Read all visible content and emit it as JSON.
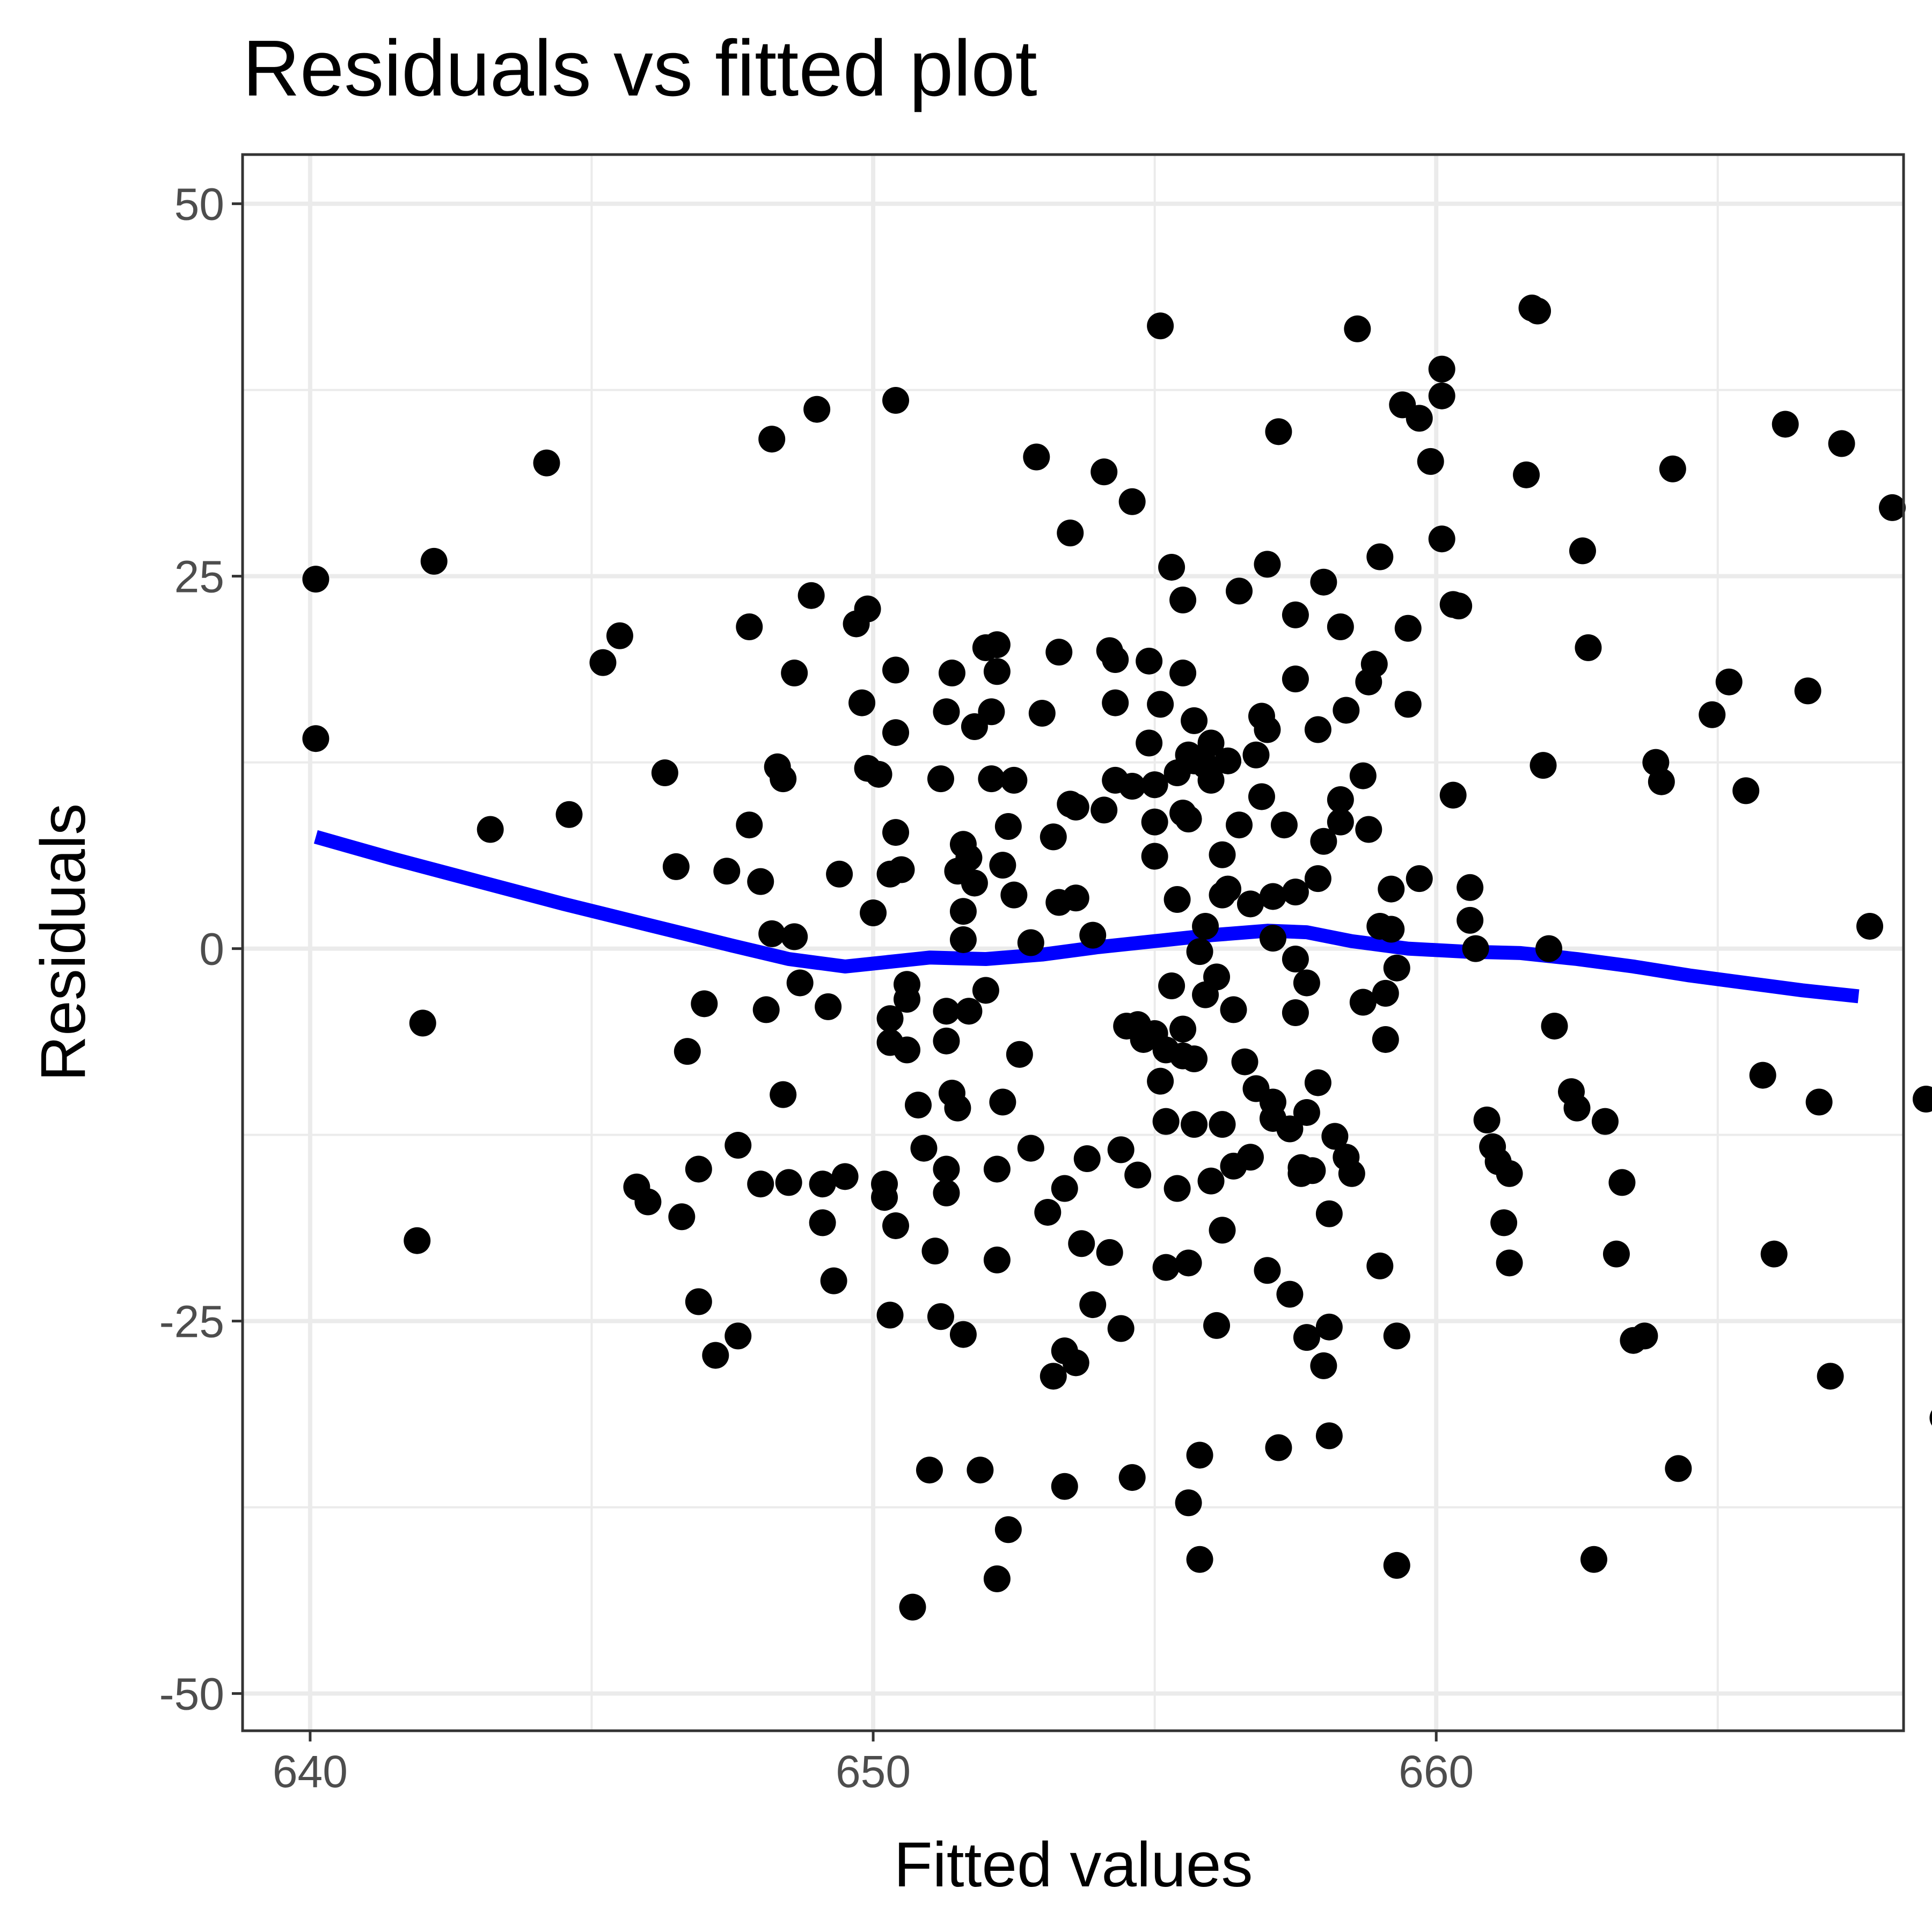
{
  "chart_data": {
    "type": "scatter",
    "title": "Residuals vs fitted plot",
    "xlabel": "Fitted values",
    "ylabel": "Residuals",
    "xlim": [
      638.8,
      668.3
    ],
    "ylim": [
      -52.5,
      53.3
    ],
    "x_ticks": [
      640,
      650,
      660
    ],
    "x_tick_labels": [
      "640",
      "650",
      "660"
    ],
    "y_ticks": [
      50,
      25,
      0,
      -25,
      -50
    ],
    "y_tick_labels": [
      "50",
      "25",
      "0",
      "-25",
      "-50"
    ],
    "grid": true,
    "point_color": "#000000",
    "smooth_color": "#0000ff",
    "points": [
      [
        640.1,
        24.8
      ],
      [
        640.1,
        14.1
      ],
      [
        642.2,
        26.0
      ],
      [
        641.9,
        -19.6
      ],
      [
        642.0,
        -5.0
      ],
      [
        643.2,
        8.0
      ],
      [
        644.2,
        32.6
      ],
      [
        644.6,
        9.0
      ],
      [
        645.2,
        19.2
      ],
      [
        645.5,
        21.0
      ],
      [
        645.8,
        -16.0
      ],
      [
        646.0,
        -17.0
      ],
      [
        646.3,
        11.8
      ],
      [
        646.5,
        5.5
      ],
      [
        646.6,
        -18.0
      ],
      [
        646.7,
        -6.9
      ],
      [
        646.9,
        -14.8
      ],
      [
        646.9,
        -23.7
      ],
      [
        647.0,
        -3.7
      ],
      [
        647.2,
        -27.3
      ],
      [
        647.4,
        5.2
      ],
      [
        647.6,
        -13.2
      ],
      [
        647.6,
        -26.0
      ],
      [
        647.8,
        21.6
      ],
      [
        647.8,
        8.3
      ],
      [
        648.0,
        4.5
      ],
      [
        648.0,
        -15.8
      ],
      [
        648.1,
        -4.1
      ],
      [
        648.2,
        1.0
      ],
      [
        648.2,
        34.2
      ],
      [
        648.3,
        12.2
      ],
      [
        648.4,
        11.4
      ],
      [
        648.4,
        -9.8
      ],
      [
        648.5,
        -15.7
      ],
      [
        648.6,
        0.8
      ],
      [
        648.6,
        18.5
      ],
      [
        648.7,
        -2.3
      ],
      [
        648.9,
        23.7
      ],
      [
        649.0,
        36.2
      ],
      [
        649.1,
        -15.8
      ],
      [
        649.1,
        -18.4
      ],
      [
        649.2,
        -3.9
      ],
      [
        649.3,
        -22.3
      ],
      [
        649.4,
        5.0
      ],
      [
        649.5,
        -15.3
      ],
      [
        649.7,
        21.8
      ],
      [
        649.8,
        16.5
      ],
      [
        649.9,
        12.1
      ],
      [
        649.9,
        22.8
      ],
      [
        650.0,
        2.4
      ],
      [
        650.1,
        11.7
      ],
      [
        650.2,
        -15.8
      ],
      [
        650.2,
        -16.7
      ],
      [
        650.3,
        5.0
      ],
      [
        650.3,
        -24.6
      ],
      [
        650.3,
        -4.7
      ],
      [
        650.3,
        -6.3
      ],
      [
        650.4,
        18.7
      ],
      [
        650.4,
        14.5
      ],
      [
        650.4,
        7.8
      ],
      [
        650.4,
        36.8
      ],
      [
        650.4,
        -18.6
      ],
      [
        650.5,
        5.3
      ],
      [
        650.6,
        -2.4
      ],
      [
        650.6,
        -3.4
      ],
      [
        650.6,
        -6.8
      ],
      [
        650.7,
        -44.2
      ],
      [
        650.8,
        -10.5
      ],
      [
        650.9,
        -13.4
      ],
      [
        651.0,
        -35.0
      ],
      [
        651.1,
        -20.3
      ],
      [
        651.2,
        -24.7
      ],
      [
        651.2,
        11.4
      ],
      [
        651.3,
        -14.8
      ],
      [
        651.3,
        -16.4
      ],
      [
        651.3,
        -4.2
      ],
      [
        651.3,
        -6.2
      ],
      [
        651.3,
        15.9
      ],
      [
        651.4,
        18.5
      ],
      [
        651.4,
        -9.7
      ],
      [
        651.5,
        -10.7
      ],
      [
        651.5,
        5.2
      ],
      [
        651.6,
        7.0
      ],
      [
        651.6,
        0.6
      ],
      [
        651.6,
        -25.9
      ],
      [
        651.6,
        2.5
      ],
      [
        651.7,
        6.1
      ],
      [
        651.7,
        -4.2
      ],
      [
        651.8,
        4.4
      ],
      [
        651.8,
        14.9
      ],
      [
        651.9,
        -35.0
      ],
      [
        652.0,
        20.2
      ],
      [
        652.0,
        -2.8
      ],
      [
        652.1,
        11.4
      ],
      [
        652.1,
        15.9
      ],
      [
        652.2,
        18.6
      ],
      [
        652.2,
        20.4
      ],
      [
        652.2,
        -42.3
      ],
      [
        652.2,
        -20.9
      ],
      [
        652.2,
        -14.8
      ],
      [
        652.3,
        -10.3
      ],
      [
        652.3,
        5.6
      ],
      [
        652.4,
        8.2
      ],
      [
        652.4,
        -39.0
      ],
      [
        652.5,
        11.3
      ],
      [
        652.5,
        3.6
      ],
      [
        652.6,
        -7.1
      ],
      [
        652.8,
        -13.4
      ],
      [
        652.8,
        0.4
      ],
      [
        652.9,
        33.0
      ],
      [
        653.0,
        15.8
      ],
      [
        653.1,
        -17.7
      ],
      [
        653.2,
        -28.7
      ],
      [
        653.2,
        7.5
      ],
      [
        653.3,
        19.9
      ],
      [
        653.3,
        3.1
      ],
      [
        653.4,
        -36.1
      ],
      [
        653.4,
        -16.1
      ],
      [
        653.4,
        -27.0
      ],
      [
        653.5,
        9.7
      ],
      [
        653.5,
        27.9
      ],
      [
        653.6,
        -27.8
      ],
      [
        653.6,
        9.5
      ],
      [
        653.6,
        3.4
      ],
      [
        653.7,
        -19.8
      ],
      [
        653.8,
        -14.1
      ],
      [
        653.9,
        -23.9
      ],
      [
        653.9,
        0.9
      ],
      [
        654.1,
        32.0
      ],
      [
        654.1,
        9.3
      ],
      [
        654.2,
        20.0
      ],
      [
        654.2,
        -20.4
      ],
      [
        654.3,
        19.4
      ],
      [
        654.3,
        16.5
      ],
      [
        654.3,
        11.3
      ],
      [
        654.4,
        -25.5
      ],
      [
        654.4,
        -13.5
      ],
      [
        654.5,
        -5.2
      ],
      [
        654.6,
        30.0
      ],
      [
        654.6,
        -35.5
      ],
      [
        654.6,
        10.9
      ],
      [
        654.7,
        -15.2
      ],
      [
        654.7,
        -5.1
      ],
      [
        654.8,
        -6.1
      ],
      [
        654.9,
        19.3
      ],
      [
        654.9,
        13.8
      ],
      [
        655.0,
        11.0
      ],
      [
        655.0,
        8.5
      ],
      [
        655.0,
        6.2
      ],
      [
        655.0,
        -5.7
      ],
      [
        655.1,
        41.8
      ],
      [
        655.1,
        16.4
      ],
      [
        655.1,
        -8.9
      ],
      [
        655.2,
        -6.8
      ],
      [
        655.2,
        -11.6
      ],
      [
        655.2,
        -21.4
      ],
      [
        655.3,
        25.6
      ],
      [
        655.3,
        -2.5
      ],
      [
        655.4,
        3.3
      ],
      [
        655.4,
        11.8
      ],
      [
        655.4,
        -16.1
      ],
      [
        655.5,
        23.4
      ],
      [
        655.5,
        -5.4
      ],
      [
        655.5,
        -7.2
      ],
      [
        655.5,
        9.1
      ],
      [
        655.5,
        18.5
      ],
      [
        655.6,
        -37.2
      ],
      [
        655.6,
        -21.1
      ],
      [
        655.6,
        8.7
      ],
      [
        655.6,
        13.0
      ],
      [
        655.7,
        -11.8
      ],
      [
        655.7,
        12.6
      ],
      [
        655.7,
        -7.4
      ],
      [
        655.7,
        15.3
      ],
      [
        655.8,
        -41.0
      ],
      [
        655.8,
        -34.0
      ],
      [
        655.8,
        -0.2
      ],
      [
        655.9,
        1.5
      ],
      [
        655.9,
        -3.1
      ],
      [
        655.9,
        12.3
      ],
      [
        656.0,
        -15.6
      ],
      [
        656.0,
        13.8
      ],
      [
        656.0,
        11.3
      ],
      [
        656.1,
        -1.9
      ],
      [
        656.1,
        -25.3
      ],
      [
        656.2,
        -11.8
      ],
      [
        656.2,
        3.6
      ],
      [
        656.2,
        -18.9
      ],
      [
        656.2,
        6.3
      ],
      [
        656.3,
        12.6
      ],
      [
        656.3,
        4.0
      ],
      [
        656.4,
        -4.1
      ],
      [
        656.4,
        -14.6
      ],
      [
        656.5,
        24.0
      ],
      [
        656.5,
        8.3
      ],
      [
        656.6,
        -7.6
      ],
      [
        656.7,
        3.0
      ],
      [
        656.7,
        -14.0
      ],
      [
        656.8,
        -9.4
      ],
      [
        656.8,
        13.0
      ],
      [
        656.9,
        10.2
      ],
      [
        656.9,
        15.6
      ],
      [
        657.0,
        -21.6
      ],
      [
        657.0,
        25.8
      ],
      [
        657.0,
        14.7
      ],
      [
        657.1,
        -10.3
      ],
      [
        657.1,
        -11.4
      ],
      [
        657.1,
        0.7
      ],
      [
        657.1,
        3.5
      ],
      [
        657.2,
        34.7
      ],
      [
        657.2,
        -33.5
      ],
      [
        657.3,
        8.3
      ],
      [
        657.4,
        -23.2
      ],
      [
        657.4,
        -12.1
      ],
      [
        657.5,
        22.4
      ],
      [
        657.5,
        18.1
      ],
      [
        657.5,
        -0.7
      ],
      [
        657.5,
        -4.3
      ],
      [
        657.5,
        3.8
      ],
      [
        657.6,
        -15.1
      ],
      [
        657.6,
        -14.7
      ],
      [
        657.7,
        -26.1
      ],
      [
        657.7,
        -11.0
      ],
      [
        657.7,
        -2.3
      ],
      [
        657.8,
        -14.9
      ],
      [
        657.9,
        4.7
      ],
      [
        657.9,
        -9.0
      ],
      [
        657.9,
        14.7
      ],
      [
        658.0,
        24.6
      ],
      [
        658.0,
        -28.0
      ],
      [
        658.0,
        7.2
      ],
      [
        658.1,
        -17.8
      ],
      [
        658.1,
        -25.4
      ],
      [
        658.1,
        -32.7
      ],
      [
        658.2,
        -12.6
      ],
      [
        658.3,
        8.5
      ],
      [
        658.3,
        10.0
      ],
      [
        658.3,
        21.6
      ],
      [
        658.4,
        -14.0
      ],
      [
        658.4,
        16.0
      ],
      [
        658.5,
        -15.1
      ],
      [
        658.6,
        41.6
      ],
      [
        658.7,
        11.6
      ],
      [
        658.7,
        -3.6
      ],
      [
        658.8,
        8.0
      ],
      [
        658.8,
        17.9
      ],
      [
        658.9,
        19.1
      ],
      [
        659.0,
        -21.3
      ],
      [
        659.0,
        26.3
      ],
      [
        659.0,
        1.5
      ],
      [
        659.1,
        -3.0
      ],
      [
        659.1,
        -6.1
      ],
      [
        659.2,
        4.0
      ],
      [
        659.2,
        1.3
      ],
      [
        659.3,
        -1.3
      ],
      [
        659.3,
        -26.0
      ],
      [
        659.3,
        -41.4
      ],
      [
        659.4,
        36.5
      ],
      [
        659.5,
        21.5
      ],
      [
        659.5,
        16.4
      ],
      [
        659.7,
        35.6
      ],
      [
        659.7,
        4.7
      ],
      [
        659.9,
        32.7
      ],
      [
        660.1,
        37.1
      ],
      [
        660.1,
        38.9
      ],
      [
        660.1,
        27.5
      ],
      [
        660.3,
        23.1
      ],
      [
        660.3,
        10.3
      ],
      [
        660.4,
        23.0
      ],
      [
        660.6,
        1.9
      ],
      [
        660.6,
        4.1
      ],
      [
        660.7,
        0.0
      ],
      [
        660.9,
        -11.5
      ],
      [
        661.0,
        -13.3
      ],
      [
        661.1,
        -14.3
      ],
      [
        661.2,
        -18.4
      ],
      [
        661.3,
        -15.1
      ],
      [
        661.3,
        -21.1
      ],
      [
        661.6,
        31.8
      ],
      [
        661.7,
        43.0
      ],
      [
        661.8,
        42.8
      ],
      [
        661.9,
        12.3
      ],
      [
        662.0,
        0.0
      ],
      [
        662.1,
        -5.2
      ],
      [
        662.4,
        -9.6
      ],
      [
        662.5,
        -10.7
      ],
      [
        662.6,
        26.7
      ],
      [
        662.7,
        20.2
      ],
      [
        662.8,
        -41.0
      ],
      [
        663.0,
        -11.6
      ],
      [
        663.2,
        -20.5
      ],
      [
        663.3,
        -15.7
      ],
      [
        663.5,
        -26.3
      ],
      [
        663.7,
        -26.0
      ],
      [
        663.9,
        12.5
      ],
      [
        664.0,
        11.2
      ],
      [
        664.2,
        32.2
      ],
      [
        664.3,
        -34.9
      ],
      [
        664.9,
        15.7
      ],
      [
        665.2,
        17.9
      ],
      [
        665.5,
        10.6
      ],
      [
        665.8,
        -8.5
      ],
      [
        666.0,
        -20.5
      ],
      [
        666.2,
        35.2
      ],
      [
        666.6,
        17.3
      ],
      [
        666.8,
        -10.3
      ],
      [
        667.0,
        -28.7
      ],
      [
        667.2,
        33.9
      ],
      [
        667.7,
        1.5
      ],
      [
        668.1,
        29.6
      ],
      [
        668.7,
        -10.1
      ],
      [
        669.0,
        -31.5
      ]
    ],
    "smooth_line": [
      [
        640.1,
        7.5
      ],
      [
        641.5,
        6.0
      ],
      [
        643.0,
        4.5
      ],
      [
        644.5,
        3.0
      ],
      [
        646.0,
        1.6
      ],
      [
        647.5,
        0.2
      ],
      [
        648.5,
        -0.7
      ],
      [
        649.5,
        -1.2
      ],
      [
        650.0,
        -1.0
      ],
      [
        651.0,
        -0.6
      ],
      [
        652.0,
        -0.7
      ],
      [
        653.0,
        -0.4
      ],
      [
        654.0,
        0.1
      ],
      [
        655.0,
        0.5
      ],
      [
        656.0,
        0.9
      ],
      [
        657.0,
        1.2
      ],
      [
        657.7,
        1.1
      ],
      [
        658.5,
        0.5
      ],
      [
        659.5,
        0.0
      ],
      [
        660.5,
        -0.2
      ],
      [
        661.5,
        -0.3
      ],
      [
        662.5,
        -0.7
      ],
      [
        663.5,
        -1.2
      ],
      [
        664.5,
        -1.8
      ],
      [
        665.5,
        -2.3
      ],
      [
        666.5,
        -2.8
      ],
      [
        667.5,
        -3.2
      ]
    ]
  }
}
